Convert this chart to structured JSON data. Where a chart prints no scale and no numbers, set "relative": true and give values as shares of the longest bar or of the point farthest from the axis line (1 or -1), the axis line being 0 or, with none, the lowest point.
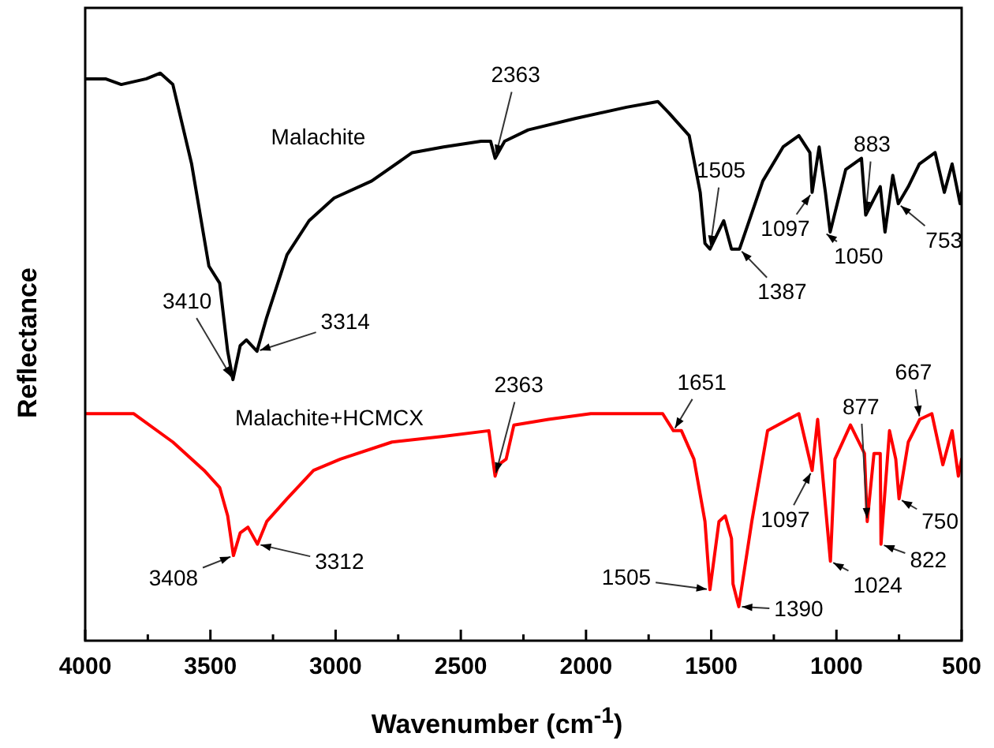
{
  "chart_data": {
    "type": "line",
    "xlabel": "Wavenumber (cm$^{-1}$)",
    "ylabel": "Reflectance",
    "relative": true,
    "marker": "none",
    "xlim": [
      4000,
      500
    ],
    "xticks": [
      4000,
      {
        "value": 3750,
        "label": null
      },
      3500,
      {
        "value": 3250,
        "label": null
      },
      3000,
      {
        "value": 2750,
        "label": null
      },
      2500,
      {
        "value": 2250,
        "label": null
      },
      2000,
      {
        "value": 1750,
        "label": null
      },
      1500,
      {
        "value": 1250,
        "label": null
      },
      1000,
      {
        "value": 750,
        "label": null
      },
      500
    ],
    "series": [
      {
        "name": "Malachite",
        "color": "#000000",
        "x": [
          4000,
          3919,
          3856,
          3756,
          3700,
          3650,
          3575,
          3506,
          3463,
          3431,
          3410,
          3381,
          3356,
          3314,
          3275,
          3194,
          3106,
          3006,
          2856,
          2694,
          2569,
          2419,
          2381,
          2363,
          2325,
          2231,
          2044,
          1838,
          1713,
          1669,
          1588,
          1544,
          1525,
          1505,
          1450,
          1419,
          1387,
          1294,
          1213,
          1150,
          1106,
          1097,
          1069,
          1044,
          1025,
          963,
          900,
          883,
          825,
          806,
          775,
          753,
          713,
          669,
          606,
          569,
          538,
          506,
          500
        ],
        "values": [
          0.99,
          0.99,
          0.98,
          0.99,
          1.0,
          0.98,
          0.84,
          0.66,
          0.63,
          0.51,
          0.46,
          0.52,
          0.53,
          0.51,
          0.57,
          0.68,
          0.74,
          0.78,
          0.81,
          0.86,
          0.87,
          0.88,
          0.88,
          0.85,
          0.88,
          0.9,
          0.92,
          0.94,
          0.95,
          0.93,
          0.89,
          0.79,
          0.7,
          0.69,
          0.74,
          0.69,
          0.69,
          0.81,
          0.87,
          0.89,
          0.86,
          0.79,
          0.87,
          0.79,
          0.72,
          0.83,
          0.85,
          0.75,
          0.8,
          0.72,
          0.82,
          0.77,
          0.8,
          0.84,
          0.86,
          0.79,
          0.84,
          0.77,
          0.79
        ]
      },
      {
        "name": "Malachite+HCMCX",
        "color": "#ff0000",
        "x": [
          4000,
          3806,
          3650,
          3525,
          3463,
          3431,
          3408,
          3381,
          3350,
          3312,
          3275,
          3194,
          3088,
          2981,
          2775,
          2569,
          2388,
          2363,
          2350,
          2319,
          2288,
          2150,
          1981,
          1694,
          1651,
          1619,
          1569,
          1525,
          1505,
          1469,
          1444,
          1419,
          1413,
          1390,
          1338,
          1275,
          1150,
          1097,
          1075,
          1024,
          1006,
          944,
          888,
          877,
          850,
          825,
          822,
          788,
          763,
          750,
          713,
          667,
          619,
          575,
          538,
          513,
          500
        ],
        "values": [
          0.4,
          0.4,
          0.35,
          0.3,
          0.27,
          0.22,
          0.15,
          0.19,
          0.2,
          0.17,
          0.21,
          0.25,
          0.3,
          0.32,
          0.35,
          0.36,
          0.37,
          0.29,
          0.31,
          0.32,
          0.38,
          0.39,
          0.4,
          0.4,
          0.37,
          0.37,
          0.32,
          0.21,
          0.09,
          0.21,
          0.22,
          0.18,
          0.1,
          0.06,
          0.21,
          0.37,
          0.4,
          0.3,
          0.39,
          0.14,
          0.32,
          0.38,
          0.33,
          0.21,
          0.33,
          0.33,
          0.17,
          0.37,
          0.32,
          0.25,
          0.35,
          0.39,
          0.4,
          0.31,
          0.37,
          0.29,
          0.32
        ]
      }
    ],
    "annotations": [
      {
        "text": "3410",
        "x": 3410,
        "y": 0.46
      },
      {
        "text": "3314",
        "x": 3314,
        "y": 0.51
      },
      {
        "text": "2363",
        "x": 2363,
        "y": 0.85
      },
      {
        "text": "1505",
        "x": 1505,
        "y": 0.69
      },
      {
        "text": "1387",
        "x": 1387,
        "y": 0.69
      },
      {
        "text": "1097",
        "x": 1097,
        "y": 0.79
      },
      {
        "text": "1050",
        "x": 1050,
        "y": 0.72
      },
      {
        "text": "883",
        "x": 883,
        "y": 0.75
      },
      {
        "text": "753",
        "x": 753,
        "y": 0.77
      },
      {
        "text": "3408",
        "x": 3408,
        "y": 0.15
      },
      {
        "text": "3312",
        "x": 3312,
        "y": 0.17
      },
      {
        "text": "2363",
        "x": 2363,
        "y": 0.29
      },
      {
        "text": "1651",
        "x": 1651,
        "y": 0.37
      },
      {
        "text": "1097",
        "x": 1097,
        "y": 0.3
      },
      {
        "text": "1505",
        "x": 1505,
        "y": 0.09
      },
      {
        "text": "1390",
        "x": 1390,
        "y": 0.06
      },
      {
        "text": "877",
        "x": 877,
        "y": 0.21
      },
      {
        "text": "1024",
        "x": 1024,
        "y": 0.14
      },
      {
        "text": "822",
        "x": 822,
        "y": 0.17
      },
      {
        "text": "750",
        "x": 750,
        "y": 0.25
      },
      {
        "text": "667",
        "x": 667,
        "y": 0.39
      }
    ]
  }
}
